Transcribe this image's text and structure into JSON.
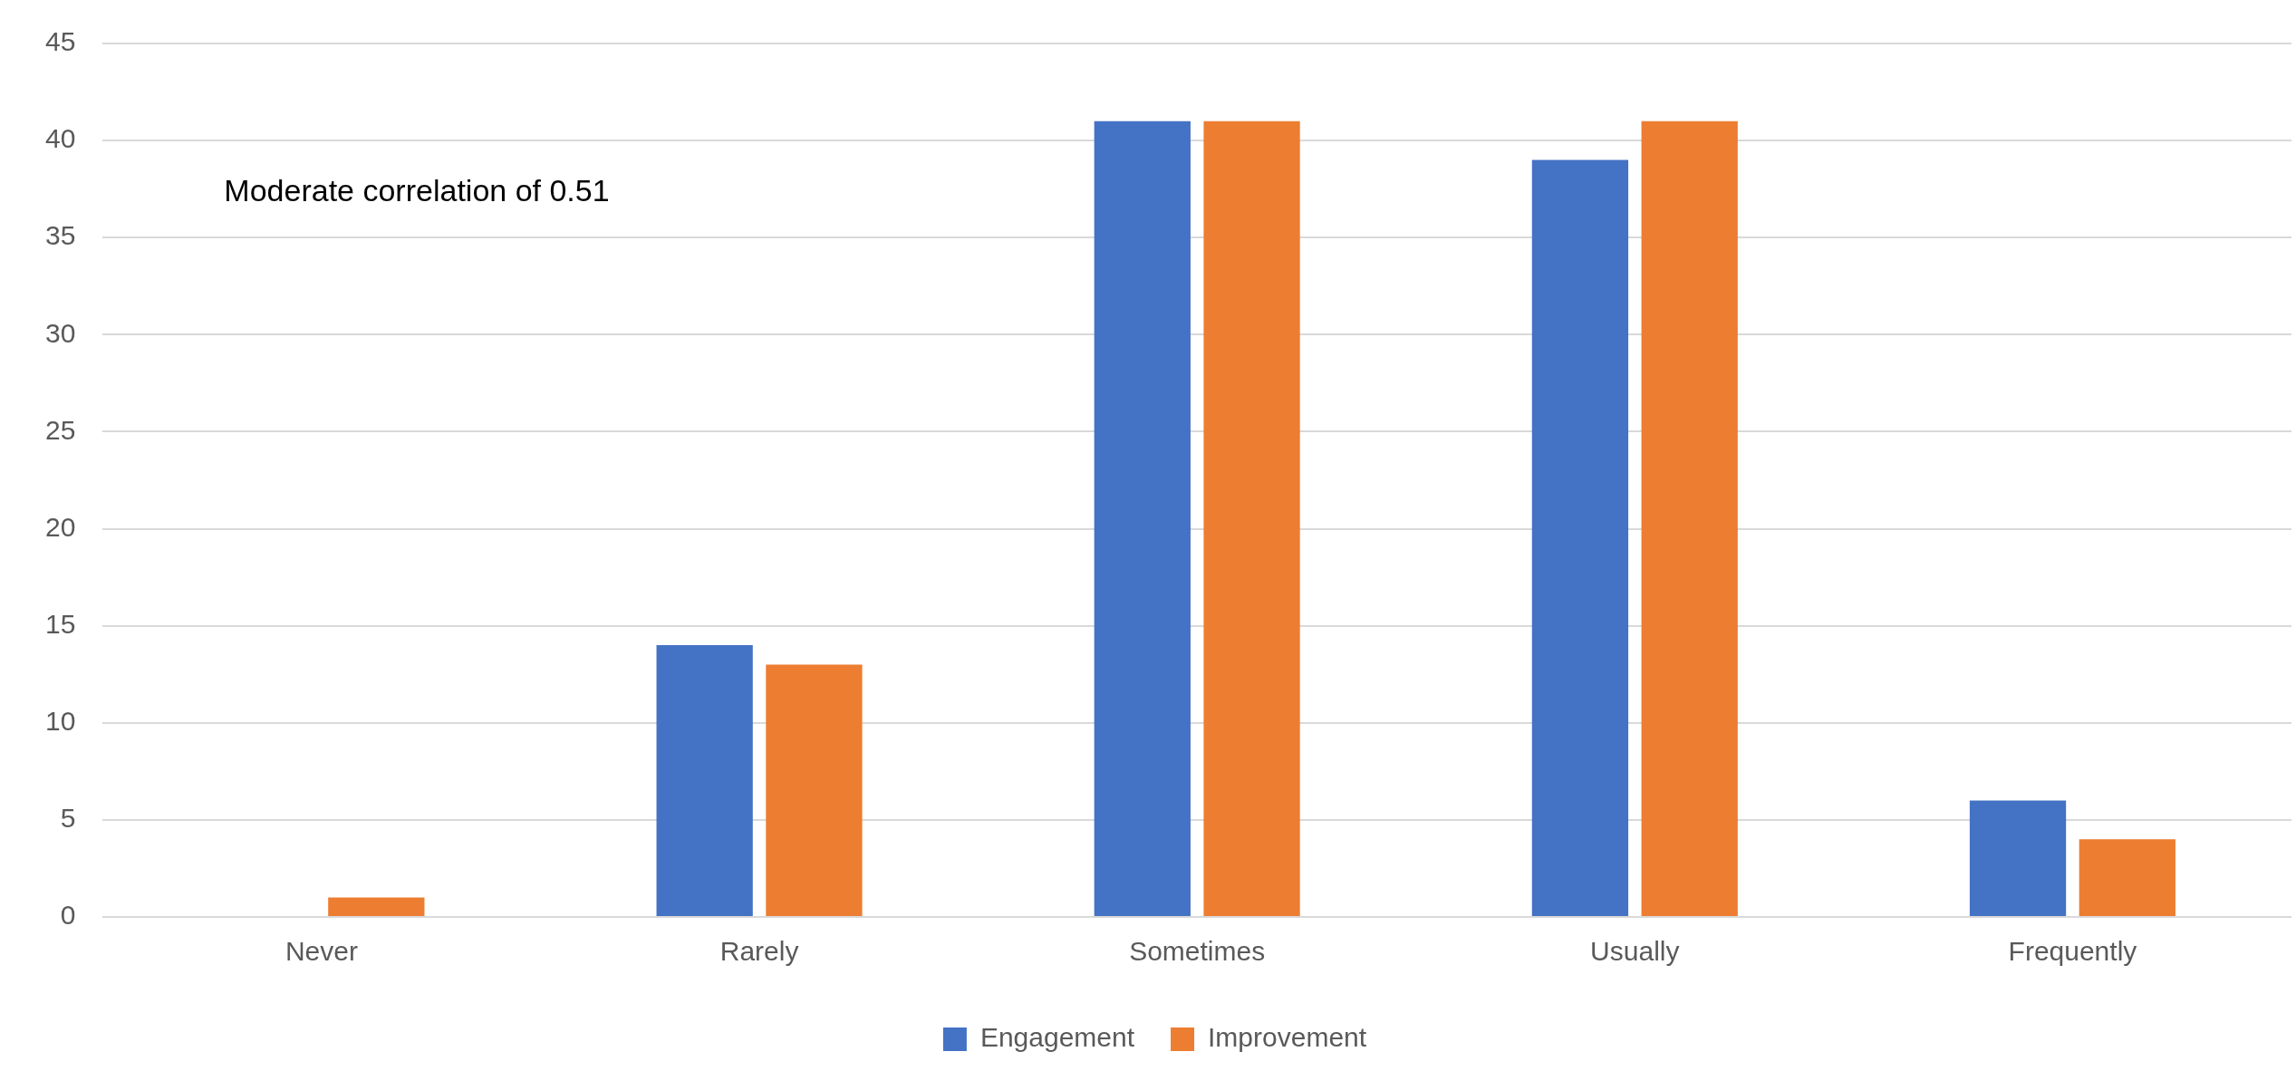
{
  "chart_data": {
    "type": "bar",
    "categories": [
      "Never",
      "Rarely",
      "Sometimes",
      "Usually",
      "Frequently"
    ],
    "series": [
      {
        "name": "Engagement",
        "color": "#4472c4",
        "values": [
          0,
          14,
          41,
          39,
          6
        ]
      },
      {
        "name": "Improvement",
        "color": "#ed7d31",
        "values": [
          1,
          13,
          41,
          41,
          4
        ]
      }
    ],
    "ylim": [
      0,
      45
    ],
    "yticks": [
      0,
      5,
      10,
      15,
      20,
      25,
      30,
      35,
      40,
      45
    ],
    "grid": "y",
    "legend": "bottom",
    "annotations": [
      "Moderate correlation of 0.51"
    ]
  }
}
